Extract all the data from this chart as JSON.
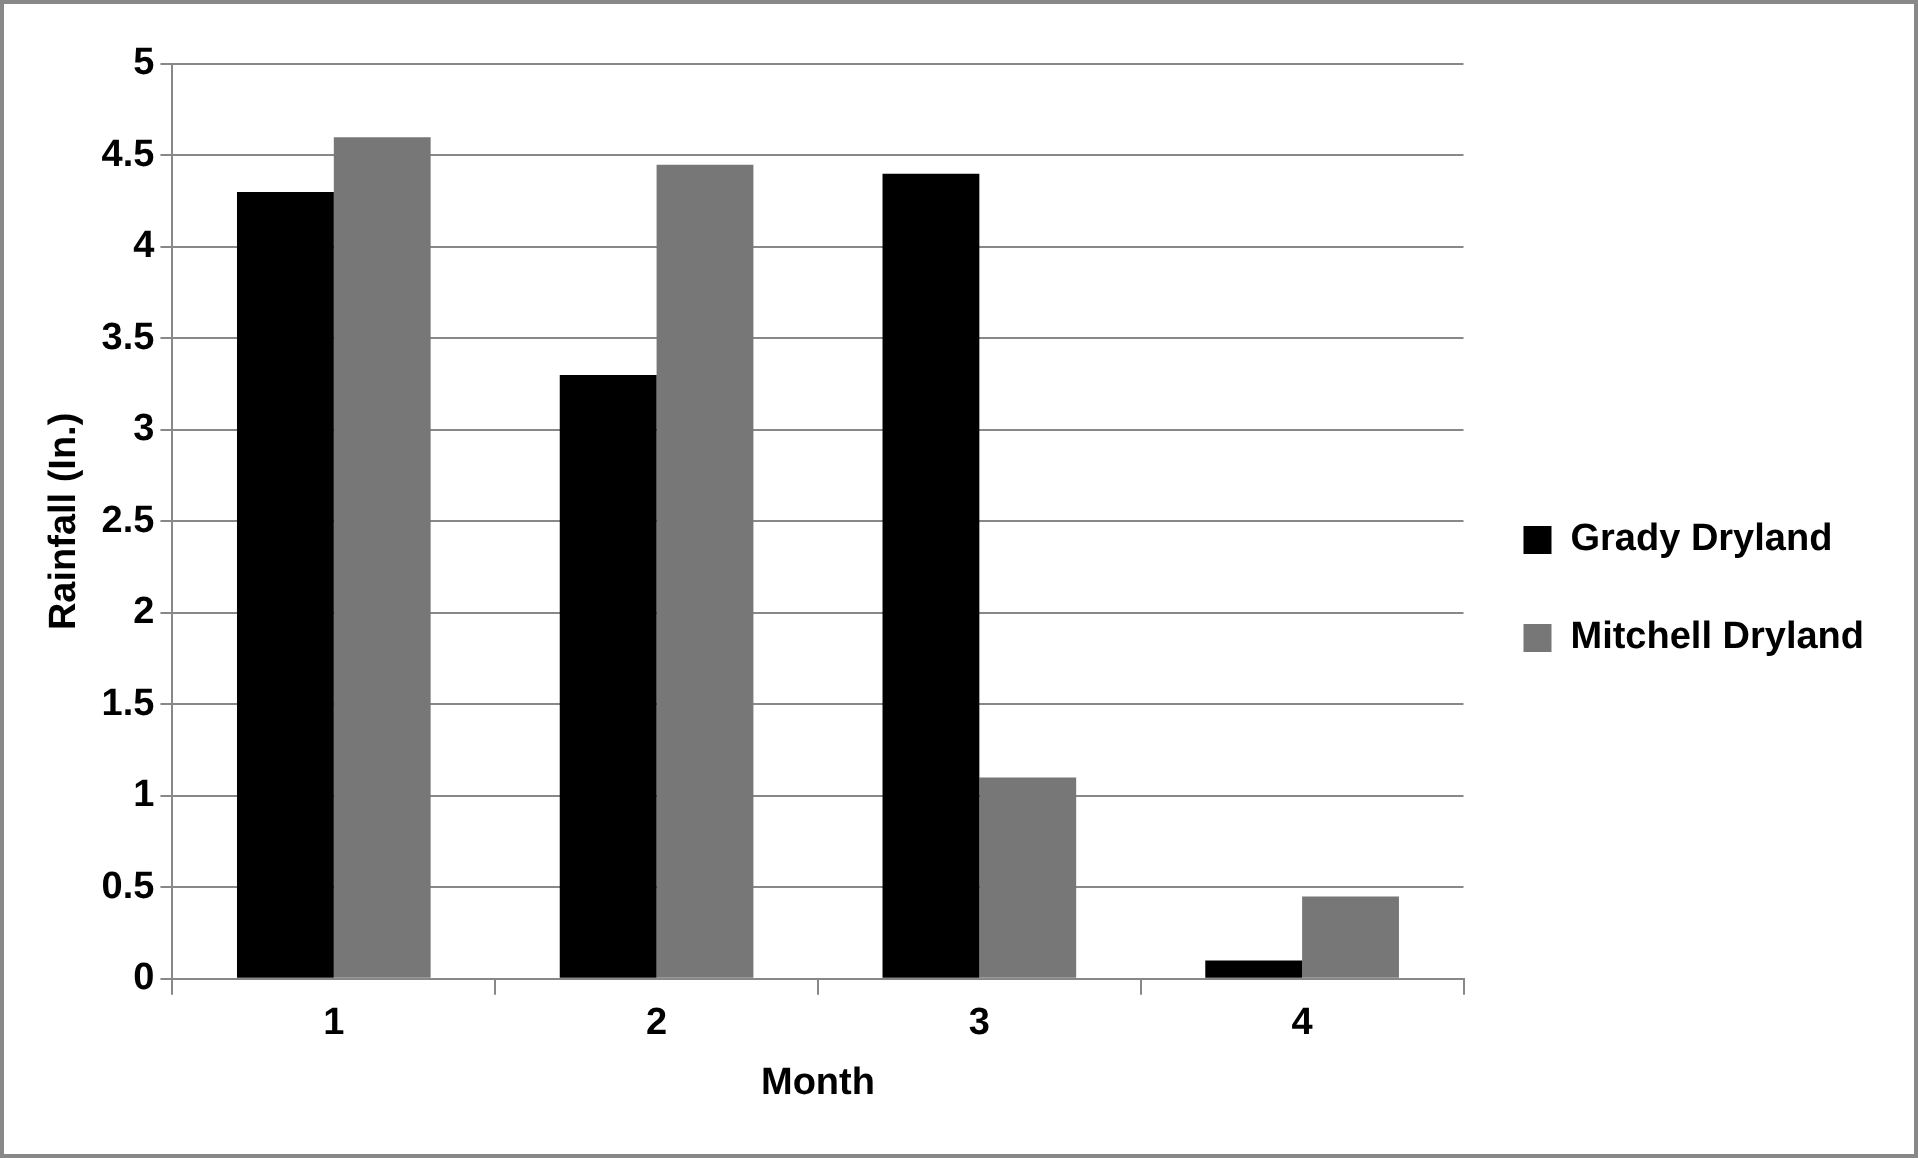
{
  "chart_data": {
    "type": "bar",
    "xlabel": "Month",
    "ylabel": "Rainfall (In.)",
    "categories": [
      "1",
      "2",
      "3",
      "4"
    ],
    "series": [
      {
        "name": "Grady Dryland",
        "color": "#000000",
        "values": [
          4.3,
          3.3,
          4.4,
          0.1
        ]
      },
      {
        "name": "Mitchell Dryland",
        "color": "#777777",
        "values": [
          4.6,
          4.45,
          1.1,
          0.45
        ]
      }
    ],
    "ylim": [
      0,
      5
    ],
    "yticks": [
      0,
      0.5,
      1,
      1.5,
      2,
      2.5,
      3,
      3.5,
      4,
      4.5,
      5
    ],
    "grid": "y",
    "legend": "right"
  }
}
